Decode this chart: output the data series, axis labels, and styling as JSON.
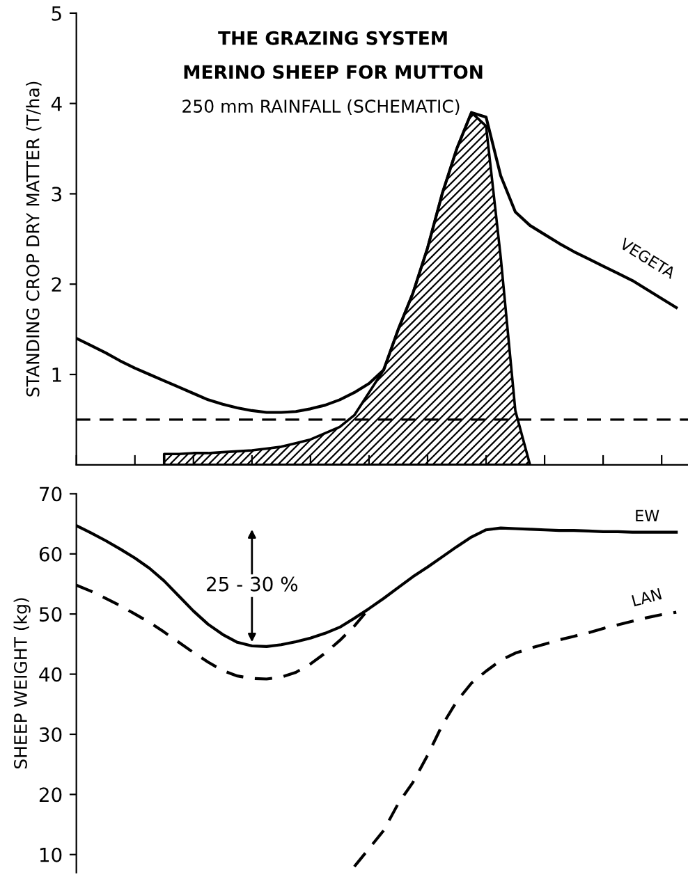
{
  "chart_data": [
    {
      "type": "line",
      "title": "THE GRAZING SYSTEM",
      "subtitle": "MERINO SHEEP FOR MUTTON",
      "annotations": [
        "250 mm RAINFALL (SCHEMATIC)"
      ],
      "ylabel": "STANDING CROP DRY MATTER (T/ha)",
      "categories": [
        null,
        null,
        null,
        null,
        null,
        null,
        null,
        null,
        null,
        null,
        null,
        null,
        null,
        null,
        null,
        null,
        null,
        null,
        null,
        null,
        null,
        null,
        null,
        null,
        null,
        null,
        null,
        null,
        null,
        null,
        null,
        null,
        null,
        null,
        null,
        null,
        null,
        null,
        null,
        null,
        null,
        null
      ],
      "series": [
        {
          "name": "VEGETA",
          "type": "line",
          "color": "#000000",
          "line_style": "solid",
          "values": [
            1.4,
            1.32,
            1.24,
            1.15,
            1.07,
            1.0,
            0.93,
            0.86,
            0.79,
            0.72,
            0.67,
            0.63,
            0.6,
            0.58,
            0.58,
            0.59,
            0.62,
            0.66,
            0.72,
            0.8,
            0.9,
            1.05,
            1.5,
            1.9,
            2.4,
            3.0,
            3.5,
            3.9,
            3.85,
            3.2,
            2.8,
            2.65,
            2.55,
            2.45,
            2.36,
            2.28,
            2.2,
            2.12,
            2.04,
            1.94,
            1.84,
            1.74
          ]
        },
        {
          "type": "area",
          "color": "#000000",
          "values": [
            null,
            null,
            null,
            null,
            null,
            null,
            0.12,
            0.12,
            0.13,
            0.13,
            0.14,
            0.15,
            0.16,
            0.18,
            0.2,
            0.24,
            0.28,
            0.35,
            0.42,
            0.55,
            0.8,
            1.05,
            1.5,
            1.9,
            2.4,
            3.0,
            3.5,
            3.9,
            3.75,
            2.3,
            0.6,
            0,
            null,
            null,
            null,
            null,
            null,
            null,
            null,
            null,
            null,
            null
          ]
        }
      ],
      "ref_lines": [
        {
          "axis": "y",
          "value": 0.5,
          "color": "#000000",
          "line_style": "dashed"
        }
      ],
      "ylim": [
        0,
        5
      ],
      "yticks": [
        1,
        2,
        3,
        4,
        5
      ],
      "tick_labels": "y",
      "grid": false
    },
    {
      "type": "line",
      "annotations": [
        "25 - 30 %"
      ],
      "ylabel": "SHEEP WEIGHT (kg)",
      "categories": [
        null,
        null,
        null,
        null,
        null,
        null,
        null,
        null,
        null,
        null,
        null,
        null,
        null,
        null,
        null,
        null,
        null,
        null,
        null,
        null,
        null,
        null,
        null,
        null,
        null,
        null,
        null,
        null,
        null,
        null,
        null,
        null,
        null,
        null,
        null,
        null,
        null,
        null,
        null,
        null,
        null,
        null
      ],
      "series": [
        {
          "name": "EW",
          "color": "#000000",
          "line_style": "solid",
          "values": [
            64.7,
            63.5,
            62.2,
            60.8,
            59.3,
            57.6,
            55.5,
            53.0,
            50.5,
            48.3,
            46.6,
            45.3,
            44.7,
            44.6,
            44.9,
            45.4,
            46.0,
            46.8,
            47.8,
            49.3,
            50.9,
            52.6,
            54.4,
            56.2,
            57.8,
            59.5,
            61.2,
            62.8,
            64.0,
            64.3,
            64.2,
            64.1,
            64.0,
            63.9,
            63.9,
            63.8,
            63.7,
            63.7,
            63.6,
            63.6,
            63.6,
            63.6
          ]
        },
        {
          "color": "#000000",
          "line_style": "dashed",
          "values": [
            54.8,
            53.8,
            52.6,
            51.4,
            50.0,
            48.6,
            47.0,
            45.3,
            43.6,
            42.0,
            40.6,
            39.7,
            39.3,
            39.2,
            39.5,
            40.3,
            41.7,
            43.5,
            45.6,
            48.0,
            50.9,
            null,
            null,
            null,
            null,
            null,
            null,
            null,
            null,
            null,
            null,
            null,
            null,
            null,
            null,
            null,
            null,
            null,
            null,
            null,
            null,
            null
          ]
        },
        {
          "name": "LAN",
          "color": "#000000",
          "line_style": "dashed",
          "values": [
            null,
            null,
            null,
            null,
            null,
            null,
            null,
            null,
            null,
            null,
            null,
            null,
            null,
            null,
            null,
            null,
            null,
            null,
            null,
            8,
            11,
            14,
            18.5,
            22,
            26.5,
            31.5,
            35.5,
            38.5,
            40.5,
            42.3,
            43.5,
            44.3,
            45.0,
            45.7,
            46.3,
            46.9,
            47.6,
            48.2,
            48.8,
            49.4,
            49.9,
            50.3
          ]
        }
      ],
      "ylim": [
        7,
        70
      ],
      "yticks": [
        10,
        20,
        30,
        40,
        50,
        60,
        70
      ],
      "tick_labels": "y",
      "grid": false
    }
  ]
}
